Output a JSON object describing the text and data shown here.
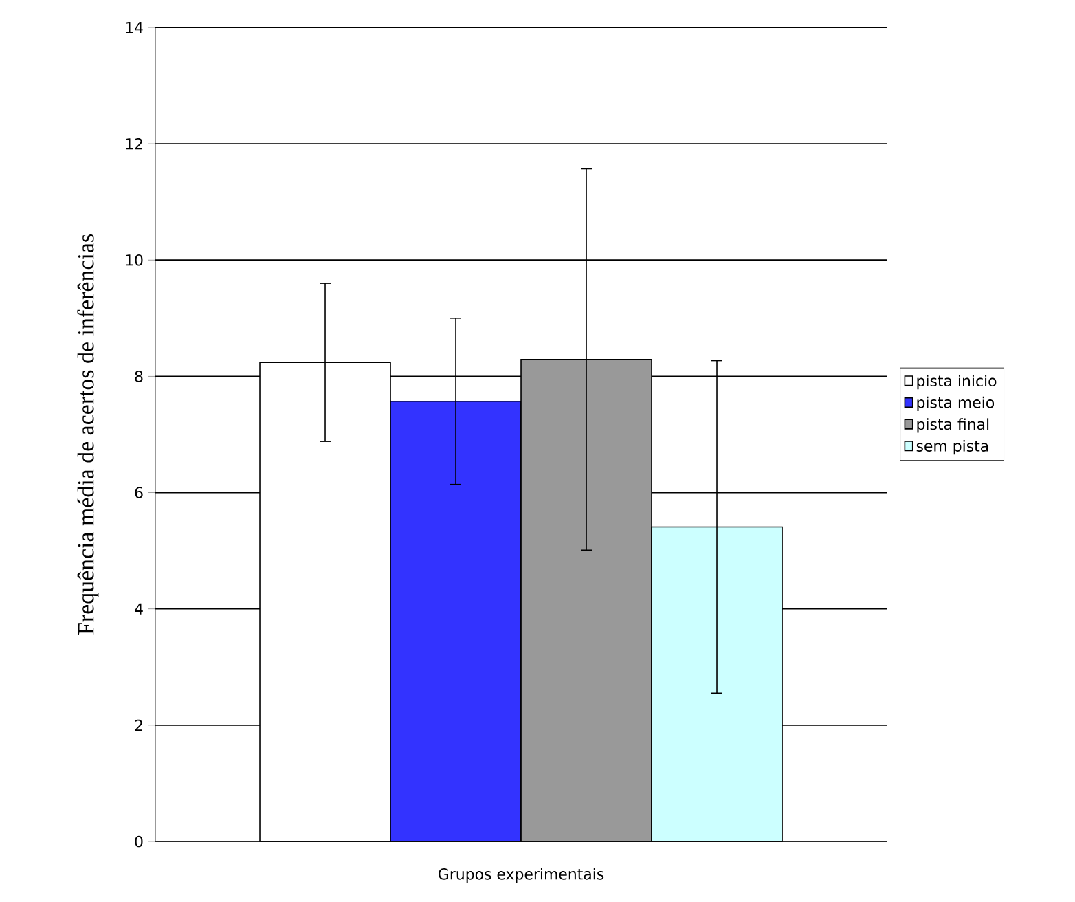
{
  "chart_data": {
    "type": "bar",
    "xlabel": "Grupos experimentais",
    "ylabel": "Frequência média de acertos de inferências",
    "categories": [
      null
    ],
    "series": [
      {
        "name": "pista inicio",
        "color": "#ffffff",
        "values": [
          8.24
        ],
        "errors": [
          1.36
        ]
      },
      {
        "name": "pista meio",
        "color": "#3333ff",
        "values": [
          7.57
        ],
        "errors": [
          1.43
        ]
      },
      {
        "name": "pista final",
        "color": "#999999",
        "values": [
          8.29
        ],
        "errors": [
          3.28
        ]
      },
      {
        "name": "sem pista",
        "color": "#ccffff",
        "values": [
          5.41
        ],
        "errors": [
          2.86
        ]
      }
    ],
    "ylim": [
      0,
      14
    ],
    "yticks": [
      0,
      2,
      4,
      6,
      8,
      10,
      12,
      14
    ],
    "grid": "y",
    "legend": "right"
  }
}
